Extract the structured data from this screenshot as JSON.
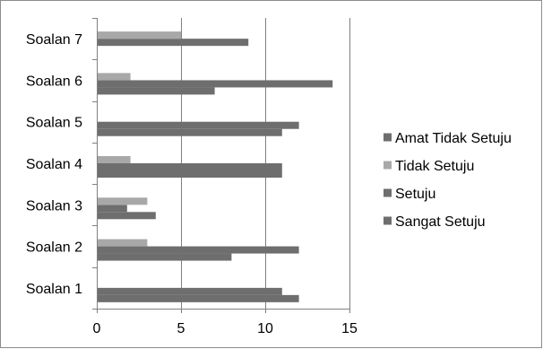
{
  "chart_data": {
    "type": "bar",
    "orientation": "horizontal",
    "categories": [
      "Soalan 1",
      "Soalan 2",
      "Soalan 3",
      "Soalan 4",
      "Soalan 5",
      "Soalan 6",
      "Soalan 7"
    ],
    "series": [
      {
        "name": "Sangat Setuju",
        "color": "#6e6e6e",
        "values": [
          12,
          8,
          3.5,
          11,
          11,
          7,
          0
        ]
      },
      {
        "name": "Setuju",
        "color": "#6e6e6e",
        "values": [
          11,
          12,
          1.8,
          11,
          12,
          14,
          9
        ]
      },
      {
        "name": "Tidak Setuju",
        "color": "#a8a8a8",
        "values": [
          0,
          3,
          3,
          2,
          0,
          2,
          5
        ]
      },
      {
        "name": "Amat Tidak Setuju",
        "color": "#6e6e6e",
        "values": [
          0,
          0,
          0,
          0,
          0,
          0,
          0
        ]
      }
    ],
    "xlim": [
      0,
      15
    ],
    "xticks": [
      0,
      5,
      10,
      15
    ],
    "title": "",
    "xlabel": "",
    "ylabel": "",
    "grid": true,
    "legend_position": "right",
    "legend_order": [
      "Amat Tidak Setuju",
      "Tidak Setuju",
      "Setuju",
      "Sangat Setuju"
    ]
  }
}
